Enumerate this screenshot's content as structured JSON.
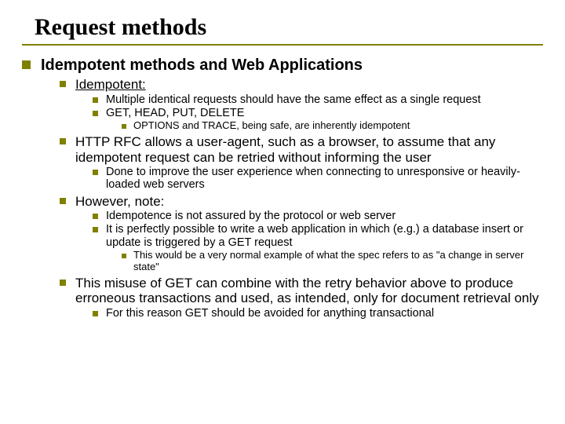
{
  "title": "Request methods",
  "colors": {
    "bullet": "#808000",
    "rule": "#808000",
    "text": "#000000",
    "background": "#ffffff"
  },
  "fonts": {
    "title_family": "Times New Roman",
    "body_family": "Arial",
    "title_size_pt": 30,
    "l1_size_pt": 20,
    "l2_size_pt": 17,
    "l3_size_pt": 14.5,
    "l4_size_pt": 13
  },
  "l1": {
    "a": "Idempotent methods and Web Applications"
  },
  "l2": {
    "a": "Idempotent:",
    "b": "HTTP RFC allows a user-agent, such as a browser, to assume that any idempotent request can be retried without informing the user",
    "c": "However, note:",
    "d": "This misuse of GET can combine with the retry behavior above to produce erroneous transactions and used, as intended, only for document retrieval only"
  },
  "l3": {
    "a1": "Multiple identical requests should have the same effect as a single request",
    "a2": "GET, HEAD, PUT, DELETE",
    "b1": "Done to improve the user experience when connecting to unresponsive or heavily-loaded web servers",
    "c1": "Idempotence is not assured by the protocol or web server",
    "c2": "It is perfectly possible to write a web application in which (e.g.) a database insert or update is triggered by a GET request",
    "d1": "For this reason GET should be avoided for anything transactional"
  },
  "l4": {
    "a2a": "OPTIONS and TRACE, being safe, are inherently idempotent",
    "c2a": "This would be a very normal example of what the spec refers to as \"a change in server state\""
  }
}
